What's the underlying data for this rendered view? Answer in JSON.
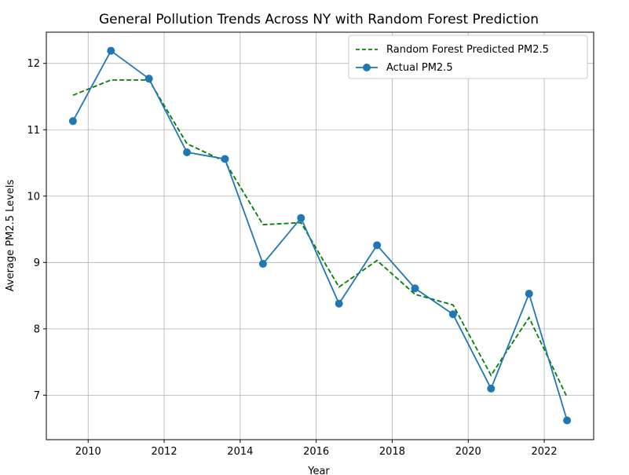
{
  "chart_data": {
    "type": "line",
    "title": "General Pollution Trends Across NY with Random Forest Prediction",
    "xlabel": "Year",
    "ylabel": "Average PM2.5 Levels",
    "xlim": [
      2008.9,
      2023.3
    ],
    "ylim": [
      6.33,
      12.47
    ],
    "x_ticks": [
      2010,
      2012,
      2014,
      2016,
      2018,
      2020,
      2022
    ],
    "y_ticks": [
      7,
      8,
      9,
      10,
      11,
      12
    ],
    "grid": true,
    "legend_position": "top-right",
    "x": [
      2009.6,
      2010.6,
      2011.6,
      2012.6,
      2013.6,
      2014.6,
      2015.6,
      2016.6,
      2017.6,
      2018.6,
      2019.6,
      2020.6,
      2021.6,
      2022.6
    ],
    "series": [
      {
        "name": "Random Forest Predicted PM2.5",
        "style": "dashed",
        "color": "#008000",
        "values": [
          11.52,
          11.75,
          11.75,
          10.79,
          10.52,
          9.57,
          9.6,
          8.63,
          9.03,
          8.52,
          8.36,
          7.3,
          8.17,
          6.97
        ]
      },
      {
        "name": "Actual PM2.5",
        "style": "solid-markers",
        "color": "#1f77b4",
        "values": [
          11.13,
          12.19,
          11.77,
          10.66,
          10.56,
          8.98,
          9.67,
          8.38,
          9.26,
          8.61,
          8.22,
          7.1,
          8.53,
          6.62
        ]
      }
    ]
  }
}
